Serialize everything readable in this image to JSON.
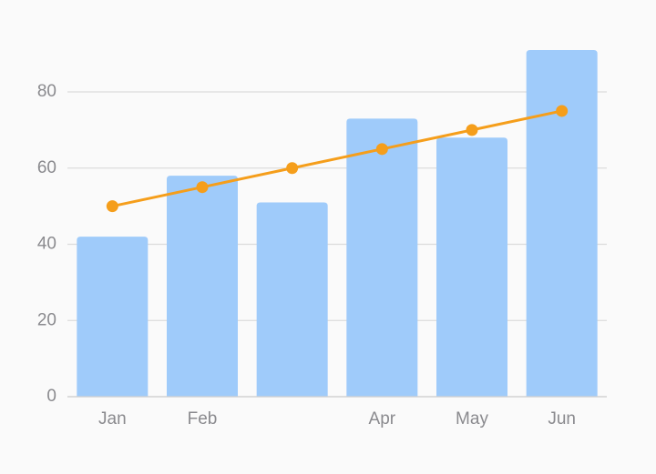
{
  "chart_data": {
    "type": "combo",
    "categories": [
      "Jan",
      "Feb",
      null,
      "Apr",
      "May",
      "Jun"
    ],
    "series": [
      {
        "type": "bar",
        "color": "#9fcbfa",
        "values": [
          42,
          58,
          51,
          73,
          68,
          91
        ]
      },
      {
        "type": "line",
        "color": "#f59e1b",
        "values": [
          50,
          55,
          60,
          65,
          70,
          75
        ]
      }
    ],
    "ylim": [
      0,
      95
    ],
    "yticks": [
      0,
      20,
      40,
      60,
      80
    ],
    "grid": true
  }
}
